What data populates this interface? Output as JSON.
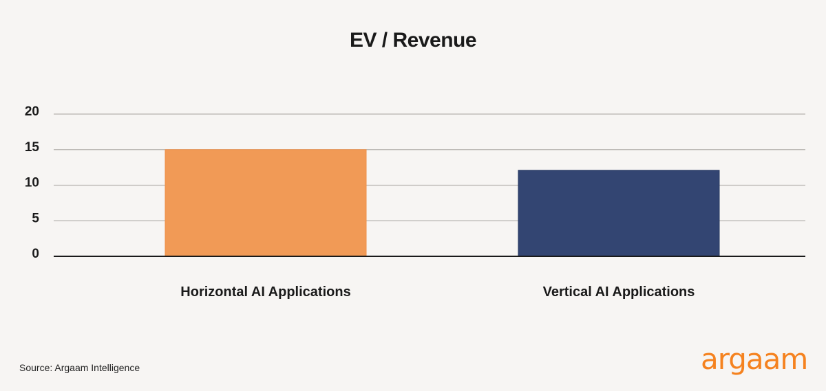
{
  "chart_data": {
    "type": "bar",
    "title": "EV / Revenue",
    "categories": [
      "Horizontal AI Applications",
      "Vertical AI Applications"
    ],
    "values": [
      15,
      12.1
    ],
    "colors": [
      "#f19a56",
      "#334572"
    ],
    "ylim": [
      0,
      20
    ],
    "yticks": [
      0,
      5,
      10,
      15,
      20
    ],
    "grid": true,
    "xlabel": "",
    "ylabel": ""
  },
  "source": "Source: Argaam Intelligence",
  "logo": "argaam",
  "logo_color": "#f5821f"
}
